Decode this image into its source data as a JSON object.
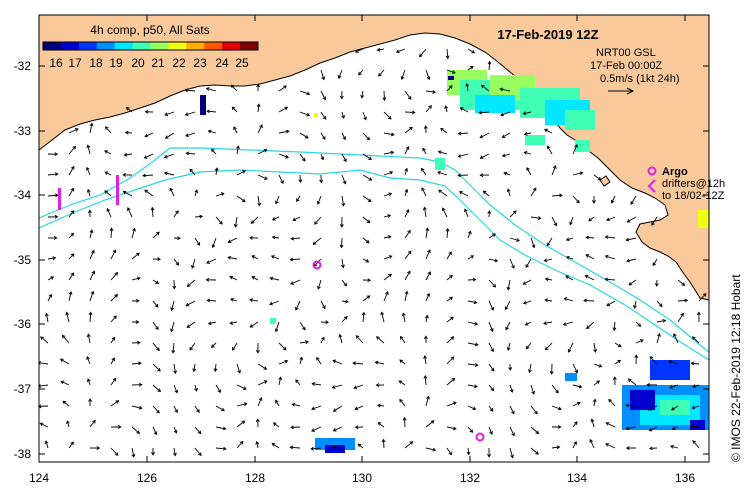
{
  "title": "17-Feb-2019 12Z",
  "colorbar": {
    "label": "4h comp, p50, All Sats",
    "ticks": [
      "16",
      "17",
      "18",
      "19",
      "20",
      "21",
      "22",
      "23",
      "24",
      "25"
    ],
    "colors": [
      "#00007f",
      "#0000d0",
      "#0035ff",
      "#008fff",
      "#00e7ff",
      "#3fffb7",
      "#97ff5f",
      "#efff0f",
      "#ffb000",
      "#ff5a00",
      "#e20000",
      "#7f0000"
    ]
  },
  "velocity_info": {
    "line1": "NRT00 GSL",
    "line2": "17-Feb 00:00Z",
    "line3": "0.5m/s (1kt 24h)"
  },
  "argo": {
    "label": "Argo",
    "line1": "drifters@12h",
    "line2": "to 18/02-12Z",
    "color": "#e020e0"
  },
  "credit": "© IMOS 22-Feb-2019 12:18 Hobart",
  "axes": {
    "x_ticks": [
      "124",
      "126",
      "128",
      "130",
      "132",
      "134",
      "136"
    ],
    "y_ticks": [
      "-32",
      "-33",
      "-34",
      "-35",
      "-36",
      "-37",
      "-38"
    ]
  },
  "colors": {
    "land": "#f9c99b",
    "isobath": "#26d6e6",
    "arrows": "#000000"
  }
}
